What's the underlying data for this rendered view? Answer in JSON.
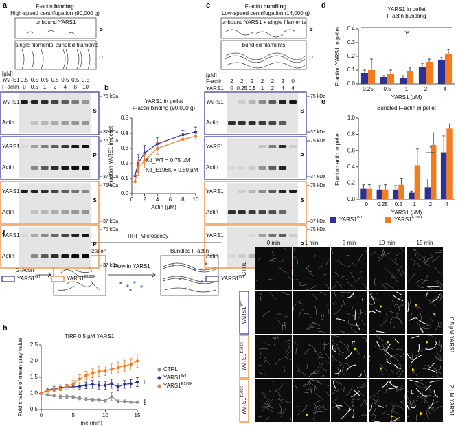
{
  "panel_a": {
    "panel": "a",
    "title": "F-actin",
    "title_bold": "binding",
    "subtitle": "High-speed centrifugation (90,000 g)",
    "s_label": "unbound YARS1",
    "s": "S",
    "p_left": "single filaments",
    "p_right": "bundled filaments",
    "p": "P",
    "unit": "[µM]",
    "rows": [
      {
        "label": "YARS1",
        "values": [
          0.5,
          0.5,
          0.5,
          0.5,
          0.5,
          0.5,
          0.5
        ]
      },
      {
        "label": "F-actin",
        "values": [
          0,
          0.5,
          1,
          2,
          4,
          8,
          10
        ]
      }
    ],
    "gels": [
      {
        "top": "YARS1",
        "bottom": "Actin",
        "fraction": "S",
        "frame": "#2e3192"
      },
      {
        "top": "YARS1",
        "bottom": "Actin",
        "fraction": "P",
        "frame": "#2e3192"
      },
      {
        "top": "YARS1",
        "bottom": "Actin",
        "fraction": "S",
        "frame": "#f47b20"
      },
      {
        "top": "YARS1",
        "bottom": "Actin",
        "fraction": "P",
        "frame": "#f47b20"
      }
    ],
    "markers": [
      "75 kDa",
      "37 kDa"
    ],
    "legend": [
      {
        "base": "YARS1",
        "sup": "WT",
        "color": "#2e3192"
      },
      {
        "base": "YARS1",
        "sup": "E196K",
        "color": "#f47b20"
      }
    ]
  },
  "panel_c": {
    "panel": "c",
    "title": "F-actin",
    "title_bold": "bundling",
    "subtitle": "Low-speed centrifugation (14,000 g)",
    "s_label": "unbound YARS1 + single filaments",
    "s": "S",
    "p_label": "bundled filaments",
    "p": "P",
    "unit": "[µM]",
    "rows": [
      {
        "label": "F-actin",
        "values": [
          2,
          2,
          2,
          2,
          2,
          2,
          0
        ]
      },
      {
        "label": "YARS1",
        "values": [
          0,
          0.25,
          0.5,
          1,
          2,
          4,
          4
        ]
      }
    ],
    "gels": [
      {
        "top": "YARS1",
        "bottom": "Actin",
        "fraction": "S",
        "frame": "#2e3192"
      },
      {
        "top": "YARS1",
        "bottom": "Actin",
        "fraction": "P",
        "frame": "#2e3192"
      },
      {
        "top": "YARS1",
        "bottom": "Actin",
        "fraction": "S",
        "frame": "#f47b20"
      },
      {
        "top": "YARS1",
        "bottom": "Actin",
        "fraction": "P",
        "frame": "#f47b20"
      }
    ],
    "markers": [
      "75 kDa",
      "37 kDa"
    ],
    "legend": [
      {
        "base": "YARS1",
        "sup": "WT",
        "color": "#2e3192"
      },
      {
        "base": "YARS1",
        "sup": "E196K",
        "color": "#f47b20"
      }
    ]
  },
  "panel_f": {
    "panel": "f",
    "title": "TIRF Microscopy",
    "start": "G-Actin",
    "step1": "F-actin polymerization",
    "flow": "Flow-in YARS1",
    "step2": "Bundled F-actin"
  },
  "panel_g": {
    "panel": "g",
    "times": [
      "0 min",
      "1 min",
      "5 min",
      "10 min",
      "15 min"
    ],
    "rows": [
      {
        "base": "CTRL"
      },
      {
        "base": "YARS1",
        "sup": "WT",
        "frame": "#2e3192"
      },
      {
        "base": "YARS1",
        "sup": "E196K",
        "frame": "#f47b20"
      },
      {
        "base": "YARS1",
        "sup": "E196K",
        "frame": "#f47b20"
      }
    ],
    "conc": [
      "0.5 µM YARS1",
      "2 µM YARS1"
    ]
  },
  "chart_data": [
    {
      "type": "line",
      "panel": "b",
      "title": "YARS1 in pellet",
      "subtitle": "F-actin binding (90,000 g)",
      "xlabel": "Actin (µM)",
      "ylabel": "Fraction YARS1 in pellet",
      "x": [
        0.5,
        1,
        2,
        4,
        8,
        10
      ],
      "xlim": [
        0,
        10
      ],
      "xticks": [
        0,
        2,
        4,
        6,
        8,
        10
      ],
      "ylim": [
        0,
        0.5
      ],
      "yticks": [
        {
          "value": 0,
          "label": "0.0"
        },
        0.1,
        0.2,
        0.3,
        0.4,
        0.5
      ],
      "series": [
        {
          "color": "#2e3192",
          "values": [
            0.12,
            0.2,
            0.27,
            0.33,
            0.39,
            0.41
          ],
          "errors": [
            0.05,
            0.06,
            0.05,
            0.04,
            0.03,
            0.03
          ]
        },
        {
          "color": "#f47b20",
          "values": [
            0.08,
            0.17,
            0.22,
            0.3,
            0.36,
            0.38
          ],
          "errors": [
            0.04,
            0.05,
            0.05,
            0.04,
            0.03,
            0.02
          ]
        }
      ],
      "annotations": [
        {
          "text": "Kd_WT = 0.75 µM",
          "color": "#2e3192"
        },
        {
          "text": "Kd_E196K = 0.80 µM",
          "color": "#f47b20"
        }
      ]
    },
    {
      "type": "bar",
      "panel": "d",
      "title": "YARS1 in pellet",
      "subtitle": "F-actin bundling",
      "xlabel": "YARS1 (µM)",
      "ylabel": "Fraction YARS1 in pellet",
      "categories": [
        "0.25",
        "0.5",
        "1",
        "2",
        "4"
      ],
      "ylim": [
        0,
        0.4
      ],
      "yticks": [
        {
          "value": 0,
          "label": "0.0"
        },
        0.1,
        0.2,
        0.3,
        0.4
      ],
      "series": [
        {
          "color": "#2e3192",
          "values": [
            0.08,
            0.05,
            0.04,
            0.12,
            0.17
          ],
          "errors": [
            0.02,
            0.01,
            0.02,
            0.03,
            0.02
          ]
        },
        {
          "color": "#f47b20",
          "values": [
            0.1,
            0.07,
            0.09,
            0.16,
            0.22
          ],
          "errors": [
            0.08,
            0.03,
            0.03,
            0.02,
            0.03
          ]
        }
      ],
      "annotations": [
        {
          "text": "ns"
        }
      ]
    },
    {
      "type": "bar",
      "panel": "e",
      "title": "Bundled F-actin in pellet",
      "xlabel": "YARS1 (µM)",
      "ylabel": "Fraction actin in pellet",
      "categories": [
        "0",
        "0.25",
        "0.5",
        "1",
        "2",
        "4"
      ],
      "ylim": [
        0,
        1
      ],
      "yticks": [
        {
          "value": 0,
          "label": "0.0"
        },
        0.2,
        0.4,
        0.6,
        0.8,
        {
          "value": 1,
          "label": "1.0"
        }
      ],
      "series": [
        {
          "name": "YARS1",
          "name_sup": "WT",
          "color": "#2e3192",
          "values": [
            0.13,
            0.12,
            0.12,
            0.08,
            0.15,
            0.58
          ],
          "errors": [
            0.05,
            0.05,
            0.05,
            0.02,
            0.1,
            0.2
          ]
        },
        {
          "name": "YARS1",
          "name_sup": "E196K",
          "color": "#f47b20",
          "values": [
            0.13,
            0.12,
            0.18,
            0.42,
            0.67,
            0.87
          ],
          "errors": [
            0.05,
            0.06,
            0.08,
            0.2,
            0.15,
            0.06
          ]
        }
      ],
      "annotations": [
        {
          "text": "*"
        }
      ],
      "legend": "bottom"
    },
    {
      "type": "line",
      "panel": "h",
      "title": "TIRF 0.5 µM YARS1",
      "xlabel": "Time (min)",
      "ylabel": "Fold change of mean gray value",
      "x": [
        0,
        1,
        2,
        3,
        4,
        5,
        6,
        7,
        8,
        9,
        10,
        11,
        12,
        13,
        14,
        15
      ],
      "xlim": [
        0,
        15
      ],
      "xticks": [
        0,
        5,
        10,
        15
      ],
      "ylim": [
        0.5,
        2.5
      ],
      "yticks": [
        0.5,
        {
          "value": 1,
          "label": "1.0"
        },
        1.5,
        {
          "value": 2,
          "label": "2.0"
        },
        2.5
      ],
      "series": [
        {
          "name": "CTRL",
          "color": "#8c8c8c",
          "values": [
            1.0,
            0.95,
            0.93,
            0.9,
            0.9,
            0.88,
            0.85,
            0.82,
            0.8,
            0.8,
            0.78,
            0.9,
            0.75,
            0.75,
            0.73,
            0.73
          ],
          "errors": [
            0.03,
            0.04,
            0.04,
            0.05,
            0.05,
            0.05,
            0.05,
            0.05,
            0.05,
            0.05,
            0.05,
            0.12,
            0.05,
            0.05,
            0.04,
            0.04
          ]
        },
        {
          "name": "YARS1",
          "name_sup": "WT",
          "color": "#2e3192",
          "values": [
            1.0,
            1.1,
            1.15,
            1.18,
            1.2,
            1.2,
            1.22,
            1.25,
            1.28,
            1.25,
            1.25,
            1.3,
            1.2,
            1.28,
            1.3,
            1.35
          ],
          "errors": [
            0.03,
            0.06,
            0.07,
            0.08,
            0.08,
            0.09,
            0.1,
            0.1,
            0.12,
            0.12,
            0.12,
            0.14,
            0.12,
            0.12,
            0.13,
            0.14
          ]
        },
        {
          "name": "YARS1",
          "name_sup": "E196K",
          "color": "#f47b20",
          "values": [
            1.0,
            1.08,
            1.12,
            1.15,
            1.2,
            1.3,
            1.45,
            1.55,
            1.62,
            1.68,
            1.7,
            1.75,
            1.8,
            1.85,
            1.9,
            2.0
          ],
          "errors": [
            0.03,
            0.05,
            0.06,
            0.07,
            0.08,
            0.1,
            0.12,
            0.13,
            0.14,
            0.15,
            0.15,
            0.16,
            0.17,
            0.18,
            0.18,
            0.2
          ]
        }
      ],
      "annotations": [
        {
          "text": "**"
        },
        {
          "text": "***"
        }
      ],
      "legend": "right"
    }
  ]
}
